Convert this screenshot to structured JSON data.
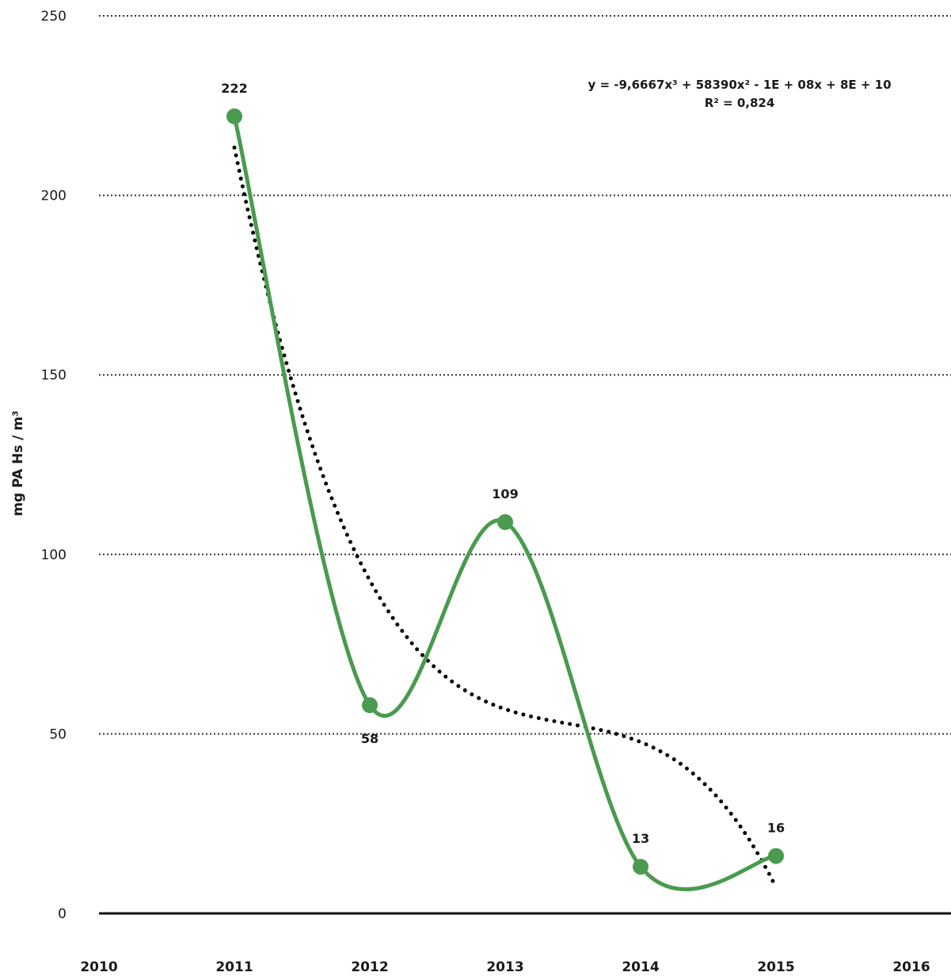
{
  "chart_data": {
    "type": "line",
    "title": "",
    "xlabel": "",
    "ylabel": "mg PA Hs / m³",
    "x_ticks": [
      "2010",
      "2011",
      "2012",
      "2013",
      "2014",
      "2015",
      "2016"
    ],
    "y_ticks": [
      0,
      50,
      100,
      150,
      200,
      250
    ],
    "xlim": [
      2010,
      2016
    ],
    "ylim": [
      0,
      250
    ],
    "grid": "horizontal dotted",
    "legend": "none",
    "series": [
      {
        "x": [
          2011,
          2012,
          2013,
          2014,
          2015
        ],
        "values": [
          222,
          58,
          109,
          13,
          16
        ],
        "data_labels": [
          "222",
          "58",
          "109",
          "13",
          "16"
        ],
        "color": "#4a9a4f",
        "smooth": true
      }
    ],
    "trendline": {
      "type": "polynomial",
      "order": 3,
      "style": "dotted",
      "color": "#000000",
      "equation": "y = -9,6667x³ + 58390x² - 1E + 08x + 8E + 10",
      "r_squared": "R² = 0,824"
    }
  }
}
